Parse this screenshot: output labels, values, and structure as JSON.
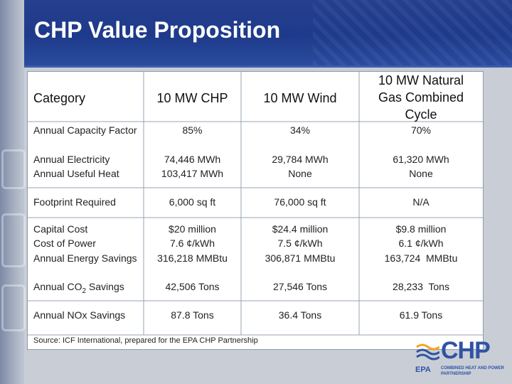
{
  "slide": {
    "title": "CHP Value Proposition",
    "source": "Source:  ICF International, prepared for the EPA CHP Partnership"
  },
  "table": {
    "headers": [
      "Category",
      "10 MW CHP",
      "10 MW Wind",
      "10 MW Natural Gas Combined Cycle"
    ],
    "rows": {
      "capacity_factor": {
        "label": "Annual Capacity Factor",
        "chp": "85%",
        "wind": "34%",
        "ngcc": "70%"
      },
      "electricity": {
        "label": "Annual Electricity",
        "chp": "74,446 MWh",
        "wind": "29,784 MWh",
        "ngcc": "61,320 MWh"
      },
      "useful_heat": {
        "label": "Annual Useful Heat",
        "chp": "103,417 MWh",
        "wind": "None",
        "ngcc": "None"
      },
      "footprint": {
        "label": "Footprint Required",
        "chp": "6,000 sq ft",
        "wind": "76,000 sq ft",
        "ngcc": "N/A"
      },
      "capital_cost": {
        "label": "Capital Cost",
        "chp": "$20 million",
        "wind": "$24.4 million",
        "ngcc": "$9.8 million"
      },
      "cost_of_power": {
        "label": "Cost of Power",
        "chp": "7.6 ¢/kWh",
        "wind": "7.5 ¢/kWh",
        "ngcc": "6.1 ¢/kWh"
      },
      "energy_savings": {
        "label": "Annual Energy Savings",
        "chp": "316,218 MMBtu",
        "wind": "306,871 MMBtu",
        "ngcc": "163,724  MMBtu"
      },
      "co2_savings": {
        "label_prefix": "Annual CO",
        "label_sub": "2",
        "label_suffix": " Savings",
        "chp": "42,506 Tons",
        "wind": "27,546 Tons",
        "ngcc": "28,233  Tons"
      },
      "nox_savings": {
        "label": "Annual NOx Savings",
        "chp": "87.8 Tons",
        "wind": "36.4 Tons",
        "ngcc": "61.9 Tons"
      }
    }
  },
  "logo": {
    "brand": "CHP",
    "agency": "EPA",
    "partnership": "COMBINED HEAT AND POWER PARTNERSHIP"
  },
  "colors": {
    "header_blue": "#1e3a8a",
    "panel_bg": "#ffffff",
    "page_bg": "#c9ced6",
    "logo_blue": "#2f53a4",
    "logo_orange": "#f2a51a"
  }
}
